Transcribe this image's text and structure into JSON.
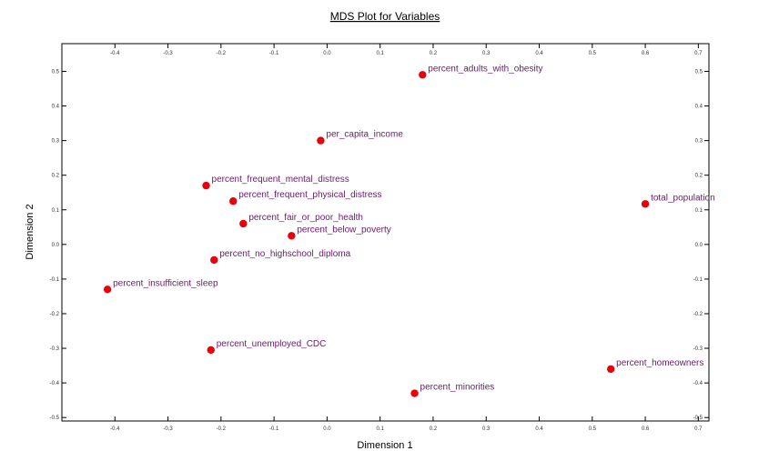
{
  "chart_data": {
    "type": "scatter",
    "title": "MDS Plot for Variables",
    "xlabel": "Dimension 1",
    "ylabel": "Dimension 2",
    "xlim": [
      -0.5,
      0.72
    ],
    "ylim": [
      -0.51,
      0.58
    ],
    "xticks": [
      -0.4,
      -0.3,
      -0.2,
      -0.1,
      0.0,
      0.1,
      0.2,
      0.3,
      0.4,
      0.5,
      0.6,
      0.7
    ],
    "xtick_labels": [
      "-0.4",
      "-0.3",
      "-0.2",
      "-0.1",
      "0.0",
      "0.1",
      "0.2",
      "0.3",
      "0.4",
      "0.5",
      "0.6",
      "0.7"
    ],
    "yticks": [
      -0.5,
      -0.4,
      -0.3,
      -0.2,
      -0.1,
      0.0,
      0.1,
      0.2,
      0.3,
      0.4,
      0.5
    ],
    "ytick_labels": [
      "-0.5",
      "-0.4",
      "-0.3",
      "-0.2",
      "-0.1",
      "0.0",
      "0.1",
      "0.2",
      "0.3",
      "0.4",
      "0.5"
    ],
    "grid": false,
    "marker_color": "#e8000b",
    "label_color": "#6a1a6a",
    "points": [
      {
        "label": "percent_adults_with_obesity",
        "x": 0.18,
        "y": 0.49
      },
      {
        "label": "per_capita_income",
        "x": -0.012,
        "y": 0.3
      },
      {
        "label": "percent_frequent_mental_distress",
        "x": -0.228,
        "y": 0.17
      },
      {
        "label": "percent_frequent_physical_distress",
        "x": -0.177,
        "y": 0.125
      },
      {
        "label": "percent_fair_or_poor_health",
        "x": -0.158,
        "y": 0.06
      },
      {
        "label": "percent_below_poverty",
        "x": -0.067,
        "y": 0.025
      },
      {
        "label": "percent_no_highschool_diploma",
        "x": -0.213,
        "y": -0.045
      },
      {
        "label": "percent_insufficient_sleep",
        "x": -0.414,
        "y": -0.13
      },
      {
        "label": "percent_unemployed_CDC",
        "x": -0.219,
        "y": -0.305
      },
      {
        "label": "percent_minorities",
        "x": 0.165,
        "y": -0.43
      },
      {
        "label": "total_population",
        "x": 0.6,
        "y": 0.117
      },
      {
        "label": "percent_homeowners",
        "x": 0.535,
        "y": -0.36
      }
    ]
  }
}
